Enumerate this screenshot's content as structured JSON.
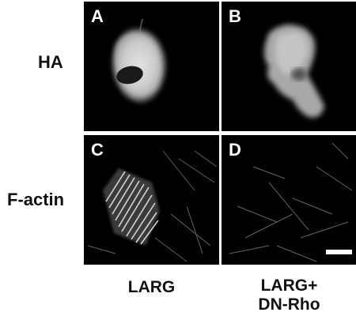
{
  "rows": [
    {
      "label": "HA"
    },
    {
      "label": "F-actin"
    }
  ],
  "columns": [
    {
      "label_line1": "LARG",
      "label_line2": ""
    },
    {
      "label_line1": "LARG+",
      "label_line2": "DN-Rho"
    }
  ],
  "panels": [
    {
      "letter": "A"
    },
    {
      "letter": "B"
    },
    {
      "letter": "C"
    },
    {
      "letter": "D"
    }
  ]
}
